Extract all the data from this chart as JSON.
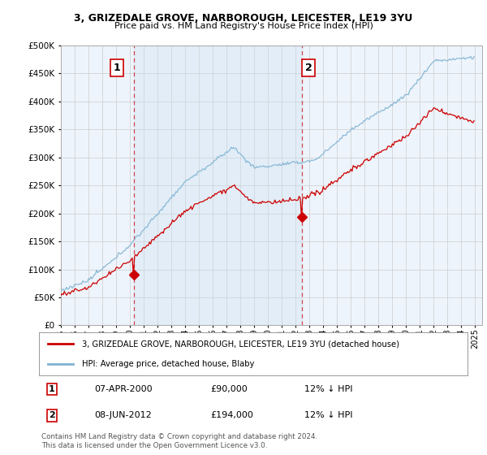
{
  "title": "3, GRIZEDALE GROVE, NARBOROUGH, LEICESTER, LE19 3YU",
  "subtitle": "Price paid vs. HM Land Registry's House Price Index (HPI)",
  "ylabel_ticks": [
    0,
    50000,
    100000,
    150000,
    200000,
    250000,
    300000,
    350000,
    400000,
    450000,
    500000
  ],
  "ylim": [
    0,
    500000
  ],
  "xlim_start": 1995.0,
  "xlim_end": 2025.5,
  "sale1_x": 2000.27,
  "sale1_y": 90000,
  "sale1_label": "1",
  "sale1_date": "07-APR-2000",
  "sale1_price": "£90,000",
  "sale1_pct": "12% ↓ HPI",
  "sale2_x": 2012.44,
  "sale2_y": 194000,
  "sale2_label": "2",
  "sale2_date": "08-JUN-2012",
  "sale2_price": "£194,000",
  "sale2_pct": "12% ↓ HPI",
  "line_color_price": "#cc0000",
  "line_color_hpi": "#7fb3d3",
  "shade_color": "#ddeeff",
  "marker_color": "#cc0000",
  "vline_color": "#cc0000",
  "grid_color": "#cccccc",
  "background_color": "#ffffff",
  "chart_bg": "#eef4fb",
  "legend_line1": "3, GRIZEDALE GROVE, NARBOROUGH, LEICESTER, LE19 3YU (detached house)",
  "legend_line2": "HPI: Average price, detached house, Blaby",
  "footnote": "Contains HM Land Registry data © Crown copyright and database right 2024.\nThis data is licensed under the Open Government Licence v3.0.",
  "x_ticks": [
    1995,
    1996,
    1997,
    1998,
    1999,
    2000,
    2001,
    2002,
    2003,
    2004,
    2005,
    2006,
    2007,
    2008,
    2009,
    2010,
    2011,
    2012,
    2013,
    2014,
    2015,
    2016,
    2017,
    2018,
    2019,
    2020,
    2021,
    2022,
    2023,
    2024,
    2025
  ]
}
